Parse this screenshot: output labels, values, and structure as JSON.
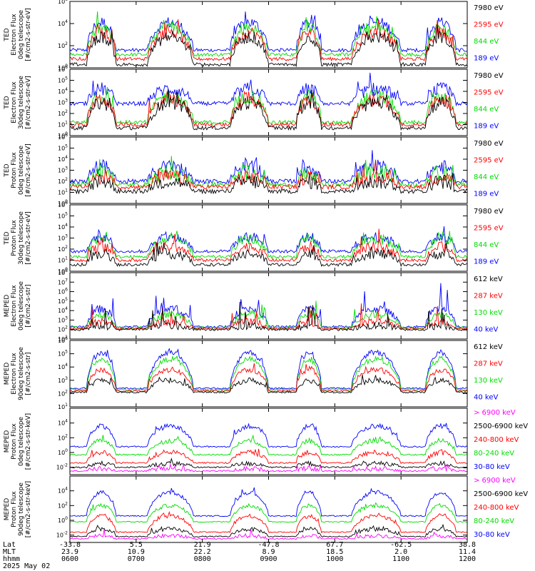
{
  "chart_data": [
    {
      "type": "line",
      "ylabel": [
        "TED",
        "Electron Flux",
        "0deg telescope",
        "[#/cm2-s-str-eV]"
      ],
      "ylog": true,
      "ylim_exp": [
        0,
        6
      ],
      "ytick_exps": [
        0,
        2,
        4,
        6
      ],
      "series": [
        {
          "name": "7980 eV",
          "color": "#000000"
        },
        {
          "name": "2595 eV",
          "color": "#ff0000"
        },
        {
          "name": "844 eV",
          "color": "#00dd00"
        },
        {
          "name": "189 eV",
          "color": "#0000ff"
        }
      ],
      "profile": {
        "low": [
          0.3,
          0.8,
          1.2,
          1.6
        ],
        "active": [
          2.8,
          3.2,
          3.6,
          4.1
        ],
        "noise": 0.8,
        "peak": 1.2
      }
    },
    {
      "type": "line",
      "ylabel": [
        "TED",
        "Electron Flux",
        "30deg telescope",
        "[#/cm2-s-str-eV]"
      ],
      "ylog": true,
      "ylim_exp": [
        0,
        6
      ],
      "ytick_exps": [
        0,
        1,
        2,
        3,
        4,
        5,
        6
      ],
      "series": [
        {
          "name": "7980 eV",
          "color": "#000000"
        },
        {
          "name": "2595 eV",
          "color": "#ff0000"
        },
        {
          "name": "844 eV",
          "color": "#00dd00"
        },
        {
          "name": "189 eV",
          "color": "#0000ff"
        }
      ],
      "profile": {
        "low": [
          0.7,
          1.0,
          1.2,
          2.9
        ],
        "active": [
          3.0,
          3.3,
          3.6,
          4.2
        ],
        "noise": 0.9,
        "peak": 1.3
      }
    },
    {
      "type": "line",
      "ylabel": [
        "TED",
        "Proton Flux",
        "0deg telescope",
        "[#/cm2-s-str-eV]"
      ],
      "ylog": true,
      "ylim_exp": [
        0,
        6
      ],
      "ytick_exps": [
        0,
        1,
        2,
        3,
        4,
        5,
        6
      ],
      "series": [
        {
          "name": "7980 eV",
          "color": "#000000"
        },
        {
          "name": "2595 eV",
          "color": "#ff0000"
        },
        {
          "name": "844 eV",
          "color": "#00dd00"
        },
        {
          "name": "189 eV",
          "color": "#0000ff"
        }
      ],
      "profile": {
        "low": [
          1.1,
          1.5,
          1.7,
          2.0
        ],
        "active": [
          2.0,
          2.4,
          2.8,
          3.3
        ],
        "noise": 1.0,
        "peak": 1.0
      }
    },
    {
      "type": "line",
      "ylabel": [
        "TED",
        "Proton Flux",
        "30deg telescope",
        "[#/cm2-s-str-eV]"
      ],
      "ylog": true,
      "ylim_exp": [
        0,
        6
      ],
      "ytick_exps": [
        0,
        1,
        2,
        3,
        4,
        5,
        6
      ],
      "series": [
        {
          "name": "7980 eV",
          "color": "#000000"
        },
        {
          "name": "2595 eV",
          "color": "#ff0000"
        },
        {
          "name": "844 eV",
          "color": "#00dd00"
        },
        {
          "name": "189 eV",
          "color": "#0000ff"
        }
      ],
      "profile": {
        "low": [
          0.6,
          1.0,
          1.3,
          1.8
        ],
        "active": [
          1.6,
          2.2,
          2.9,
          3.1
        ],
        "noise": 0.7,
        "peak": 1.2
      }
    },
    {
      "type": "line",
      "ylabel": [
        "MEPED",
        "Electron Flux",
        "0deg telescope",
        "[#/cm2-s-str]"
      ],
      "ylog": true,
      "ylim_exp": [
        1,
        8
      ],
      "ytick_exps": [
        1,
        2,
        3,
        4,
        5,
        6,
        7,
        8
      ],
      "series": [
        {
          "name": "612 keV",
          "color": "#000000"
        },
        {
          "name": "287 keV",
          "color": "#ff0000"
        },
        {
          "name": "130 keV",
          "color": "#00dd00"
        },
        {
          "name": "40 keV",
          "color": "#0000ff"
        }
      ],
      "profile": {
        "low": [
          2.0,
          2.1,
          2.2,
          2.3
        ],
        "active": [
          2.4,
          2.8,
          3.6,
          4.2
        ],
        "noise": 0.6,
        "peak": 2.4
      }
    },
    {
      "type": "line",
      "ylabel": [
        "MEPED",
        "Electron Flux",
        "90deg telescope",
        "[#/cm2-s-str]"
      ],
      "ylog": true,
      "ylim_exp": [
        1,
        6
      ],
      "ytick_exps": [
        1,
        2,
        3,
        4,
        5,
        6
      ],
      "series": [
        {
          "name": "612 keV",
          "color": "#000000"
        },
        {
          "name": "287 keV",
          "color": "#ff0000"
        },
        {
          "name": "130 keV",
          "color": "#00dd00"
        },
        {
          "name": "40 keV",
          "color": "#0000ff"
        }
      ],
      "profile": {
        "low": [
          2.1,
          2.2,
          2.3,
          2.4
        ],
        "active": [
          3.0,
          3.8,
          4.6,
          5.1
        ],
        "noise": 0.3,
        "peak": 0.5
      }
    },
    {
      "type": "line",
      "ylabel": [
        "MEPED",
        "Proton Flux",
        "0deg telescope",
        "[#/cm2-s-str-keV]"
      ],
      "ylog": true,
      "ylim_exp": [
        -3,
        6
      ],
      "ytick_exps": [
        -2,
        0,
        2,
        4
      ],
      "series": [
        {
          "name": "> 6900 keV",
          "color": "#ff00ff"
        },
        {
          "name": "2500-6900 keV",
          "color": "#000000"
        },
        {
          "name": "240-800 keV",
          "color": "#ff0000"
        },
        {
          "name": "80-240 keV",
          "color": "#00dd00"
        },
        {
          "name": "30-80 keV",
          "color": "#0000ff"
        }
      ],
      "profile": {
        "low": [
          -2.5,
          -2.0,
          -1.4,
          -0.3,
          0.8
        ],
        "active": [
          -2.2,
          -1.5,
          0.0,
          1.6,
          3.6
        ],
        "noise": 0.5,
        "peak": 0.6
      }
    },
    {
      "type": "line",
      "ylabel": [
        "MEPED",
        "Proton Flux",
        "90deg telescope",
        "[#/cm2-s-str-keV]"
      ],
      "ylog": true,
      "ylim_exp": [
        -3,
        6
      ],
      "ytick_exps": [
        -2,
        0,
        2,
        4
      ],
      "series": [
        {
          "name": "> 6900 keV",
          "color": "#ff00ff"
        },
        {
          "name": "2500-6900 keV",
          "color": "#000000"
        },
        {
          "name": "240-800 keV",
          "color": "#ff0000"
        },
        {
          "name": "80-240 keV",
          "color": "#00dd00"
        },
        {
          "name": "30-80 keV",
          "color": "#0000ff"
        }
      ],
      "profile": {
        "low": [
          -2.5,
          -2.2,
          -1.6,
          -0.2,
          0.6
        ],
        "active": [
          -2.1,
          -1.2,
          0.6,
          2.0,
          3.8
        ],
        "noise": 0.4,
        "peak": 0.6
      }
    }
  ],
  "xaxis": {
    "row_labels": [
      "Lat",
      "MLT",
      "hhmm",
      "2025 May 02"
    ],
    "lat": [
      "-33.8",
      "5.5",
      "21.9",
      "-47.8",
      "67.7",
      "-62.5",
      "38.8"
    ],
    "mlt": [
      "23.9",
      "10.9",
      "22.2",
      "8.9",
      "18.5",
      "2.0",
      "11.4"
    ],
    "hhmm": [
      "0600",
      "0700",
      "0800",
      "0900",
      "1000",
      "1100",
      "1200"
    ]
  },
  "time_range_minutes": [
    0,
    360
  ],
  "active_windows": [
    [
      15,
      42
    ],
    [
      70,
      112
    ],
    [
      145,
      180
    ],
    [
      205,
      228
    ],
    [
      255,
      300
    ],
    [
      322,
      350
    ]
  ],
  "colors": {
    "black": "#000000",
    "red": "#ff0000",
    "green": "#00dd00",
    "blue": "#0000ff",
    "magenta": "#ff00ff"
  }
}
